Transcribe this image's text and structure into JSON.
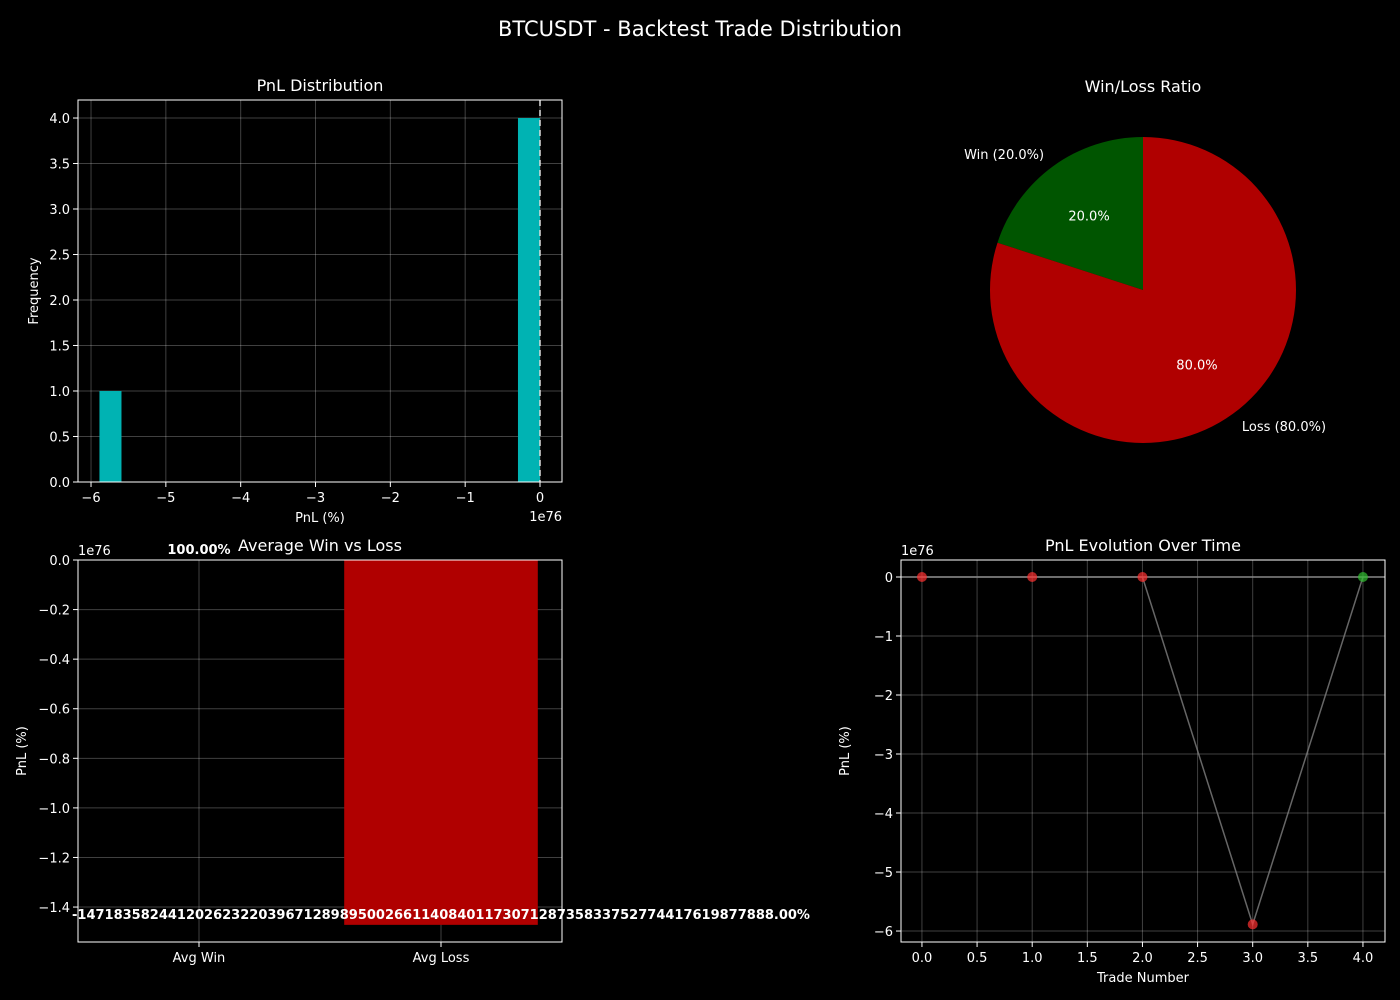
{
  "title": "BTCUSDT - Backtest Trade Distribution",
  "chart_data": [
    {
      "type": "histogram",
      "title": "PnL Distribution",
      "xlabel": "PnL (%)",
      "ylabel": "Frequency",
      "offset_label": "1e76",
      "bins": [
        -5.8873e+76,
        -5.592935e+76,
        -5.29857e+76,
        -5.004205e+76,
        -4.70984e+76,
        -4.415475e+76,
        -4.12111e+76,
        -3.826745e+76,
        -3.53238e+76,
        -3.238015e+76,
        -2.94365e+76,
        -2.649285e+76,
        -2.35492e+76,
        -2.060555e+76,
        -1.76619e+76,
        -1.471825e+76,
        -1.17746e+76,
        -8.83095e+75,
        -5.8873e+75,
        -2.94365e+75,
        100
      ],
      "counts": [
        1,
        0,
        0,
        0,
        0,
        0,
        0,
        0,
        0,
        0,
        0,
        0,
        0,
        0,
        0,
        0,
        0,
        0,
        0,
        4
      ],
      "color": "#00b3b3",
      "vline": 0,
      "xlim": [
        -6.174e+76,
        2.94e+75
      ],
      "xticks": [
        {
          "value": -6e+76,
          "label": "−6"
        },
        {
          "value": -5e+76,
          "label": "−5"
        },
        {
          "value": -4e+76,
          "label": "−4"
        },
        {
          "value": -3e+76,
          "label": "−3"
        },
        {
          "value": -2e+76,
          "label": "−2"
        },
        {
          "value": -1e+76,
          "label": "−1"
        },
        0
      ],
      "ylim": [
        0,
        4.198
      ],
      "yticks": [
        {
          "value": 0,
          "label": "0.0"
        },
        {
          "value": 0.5,
          "label": "0.5"
        },
        {
          "value": 1,
          "label": "1.0"
        },
        {
          "value": 1.5,
          "label": "1.5"
        },
        {
          "value": 2,
          "label": "2.0"
        },
        {
          "value": 2.5,
          "label": "2.5"
        },
        {
          "value": 3,
          "label": "3.0"
        },
        {
          "value": 3.5,
          "label": "3.5"
        },
        {
          "value": 4,
          "label": "4.0"
        }
      ],
      "grid": true
    },
    {
      "type": "pie",
      "title": "Win/Loss Ratio",
      "categories": [
        "Win (20.0%)",
        "Loss (80.0%)"
      ],
      "values": [
        20,
        80
      ],
      "value_labels": [
        "20.0%",
        "80.0%"
      ],
      "colors": [
        "#005500",
        "#b00000"
      ],
      "start_angle": 90
    },
    {
      "type": "bar",
      "title": "Average Win vs Loss",
      "ylabel": "PnL (%)",
      "offset_label": "1e76",
      "categories": [
        "Avg Win",
        "Avg Loss"
      ],
      "values": [
        100,
        -1.4718358244120262e+76
      ],
      "value_labels": [
        "100.00%",
        "-14718358244120262322039671289895002661140840117307128735833752774417619877888.00%"
      ],
      "colors": [
        "#00b300",
        "#b00000"
      ],
      "ylim": [
        -1.541e+76,
        0
      ],
      "yticks": [
        {
          "value": 0,
          "label": "0.0"
        },
        {
          "value": -2e+75,
          "label": "−0.2"
        },
        {
          "value": -4e+75,
          "label": "−0.4"
        },
        {
          "value": -6e+75,
          "label": "−0.6"
        },
        {
          "value": -8e+75,
          "label": "−0.8"
        },
        {
          "value": -1e+76,
          "label": "−1.0"
        },
        {
          "value": -1.2e+76,
          "label": "−1.2"
        },
        {
          "value": -1.4e+76,
          "label": "−1.4"
        }
      ],
      "grid": true
    },
    {
      "type": "line",
      "title": "PnL Evolution Over Time",
      "xlabel": "Trade Number",
      "ylabel": "PnL (%)",
      "offset_label": "1e76",
      "x": [
        0,
        1,
        2,
        3,
        4
      ],
      "values": [
        -1,
        -1,
        -1,
        -5.8873e+76,
        100
      ],
      "point_colors": [
        "#ff3030",
        "#ff3030",
        "#ff3030",
        "#ff3030",
        "#30c030"
      ],
      "color": "#808080",
      "hline": 0,
      "xlim": [
        -0.19,
        4.2
      ],
      "xticks": [
        {
          "value": 0,
          "label": "0.0"
        },
        {
          "value": 0.5,
          "label": "0.5"
        },
        {
          "value": 1,
          "label": "1.0"
        },
        {
          "value": 1.5,
          "label": "1.5"
        },
        {
          "value": 2,
          "label": "2.0"
        },
        {
          "value": 2.5,
          "label": "2.5"
        },
        {
          "value": 3,
          "label": "3.0"
        },
        {
          "value": 3.5,
          "label": "3.5"
        },
        {
          "value": 4,
          "label": "4.0"
        }
      ],
      "ylim": [
        -6.186e+76,
        2.88e+75
      ],
      "yticks": [
        {
          "value": -6e+76,
          "label": "−6"
        },
        {
          "value": -5e+76,
          "label": "−5"
        },
        {
          "value": -4e+76,
          "label": "−4"
        },
        {
          "value": -3e+76,
          "label": "−3"
        },
        {
          "value": -2e+76,
          "label": "−2"
        },
        {
          "value": -1e+76,
          "label": "−1"
        },
        0
      ],
      "grid": true
    }
  ]
}
